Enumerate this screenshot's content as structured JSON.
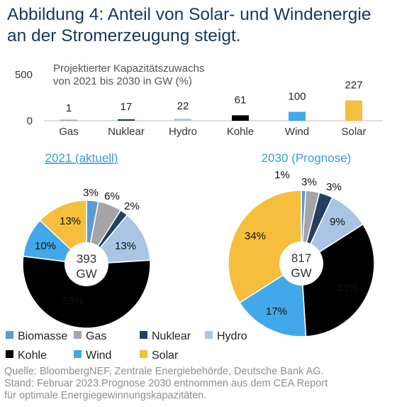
{
  "title_lines": [
    "Abbildung 4: Anteil von Solar- und Windenergie",
    "an der Stromerzeugung steigt."
  ],
  "source_lines": [
    "Quelle: BloombergNEF, Zentrale Energiebehörde, Deutsche Bank AG.",
    "Stand: Februar 2023.Prognose 2030 entnommen aus dem CEA Report",
    "für optimale Energiegewinnungskapazitäten."
  ],
  "colors": {
    "title": "#17375e",
    "pie_title": "#3a9ad9",
    "Biomasse": "#5b9bd5",
    "Gas": "#a5a5a5",
    "Nuklear": "#243f60",
    "Hydro": "#a9c4e4",
    "Kohle": "#000000",
    "Wind": "#41a8ea",
    "Solar": "#f5be3c"
  },
  "chart_data": [
    {
      "type": "bar",
      "title_lines": [
        "Projektierter Kapazitätszuwachs",
        "von 2021 bis 2030 in GW (%)"
      ],
      "categories": [
        "Gas",
        "Nuklear",
        "Hydro",
        "Kohle",
        "Wind",
        "Solar"
      ],
      "values": [
        1,
        17,
        22,
        61,
        100,
        227
      ],
      "yticks": [
        "500",
        "0"
      ],
      "ylim": [
        0,
        500
      ]
    },
    {
      "type": "pie",
      "title": "2021 (aktuell)",
      "center_label": [
        "393",
        "GW"
      ],
      "slices": [
        {
          "name": "Biomasse",
          "value": 3,
          "label": "3%"
        },
        {
          "name": "Gas",
          "value": 6,
          "label": "6%"
        },
        {
          "name": "Nuklear",
          "value": 2,
          "label": "2%"
        },
        {
          "name": "Hydro",
          "value": 13,
          "label": "13%"
        },
        {
          "name": "Kohle",
          "value": 53,
          "label": "53%"
        },
        {
          "name": "Wind",
          "value": 10,
          "label": "10%"
        },
        {
          "name": "Solar",
          "value": 13,
          "label": "13%"
        }
      ]
    },
    {
      "type": "pie",
      "title": "2030 (Prognose)",
      "center_label": [
        "817",
        "GW"
      ],
      "slices": [
        {
          "name": "Biomasse",
          "value": 1,
          "label": "1%"
        },
        {
          "name": "Gas",
          "value": 3,
          "label": "3%"
        },
        {
          "name": "Nuklear",
          "value": 3,
          "label": "3%"
        },
        {
          "name": "Hydro",
          "value": 9,
          "label": "9%"
        },
        {
          "name": "Kohle",
          "value": 33,
          "label": "33%"
        },
        {
          "name": "Wind",
          "value": 17,
          "label": "17%"
        },
        {
          "name": "Solar",
          "value": 34,
          "label": "34%"
        }
      ]
    }
  ],
  "legend": {
    "items": [
      "Biomasse",
      "Gas",
      "Nuklear",
      "Hydro",
      "Kohle",
      "Wind",
      "Solar"
    ]
  }
}
